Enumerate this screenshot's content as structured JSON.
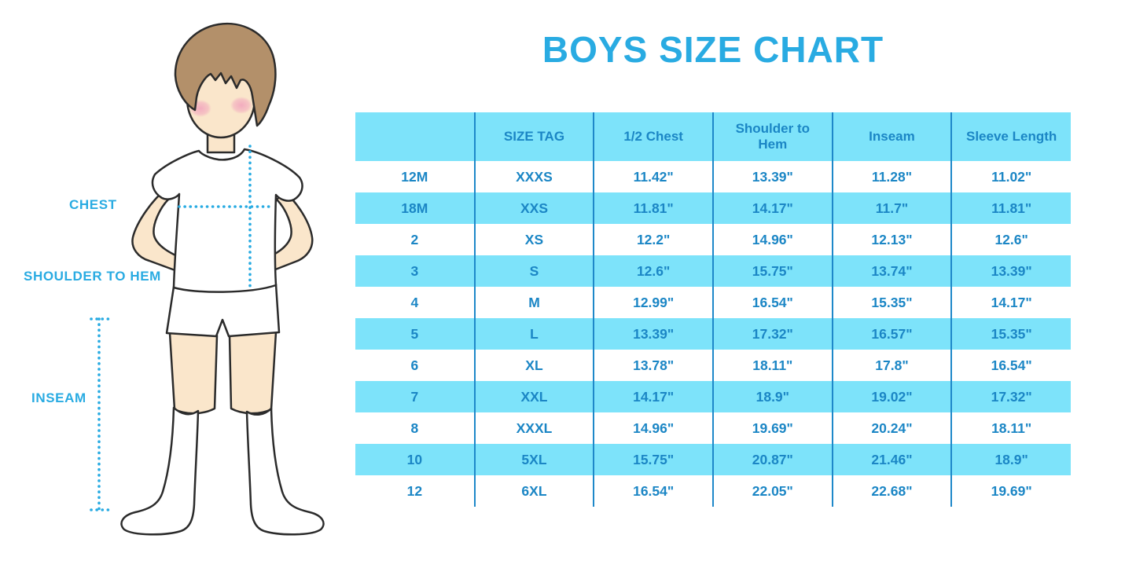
{
  "title": "BOYS SIZE CHART",
  "figure": {
    "description": "boy-in-tshirt-shorts-socks-illustration",
    "labels": {
      "chest": "CHEST",
      "shoulder_to_hem": "SHOULDER TO HEM",
      "inseam": "INSEAM"
    }
  },
  "colors": {
    "accent_blue": "#29ABE2",
    "table_text_blue": "#1B86C5",
    "row_cyan": "#7DE3FA",
    "grid_line_blue": "#1E88C9",
    "outline": "#2B2B2B",
    "skin": "#FAE6CB",
    "hair_brown": "#B3906A",
    "cheek_pink": "#F2A9BE"
  },
  "chart_data": {
    "type": "table",
    "title": "BOYS SIZE CHART",
    "columns": [
      "",
      "SIZE TAG",
      "1/2 Chest",
      "Shoulder to Hem",
      "Inseam",
      "Sleeve Length"
    ],
    "rows": [
      [
        "12M",
        "XXXS",
        "11.42\"",
        "13.39\"",
        "11.28\"",
        "11.02\""
      ],
      [
        "18M",
        "XXS",
        "11.81\"",
        "14.17\"",
        "11.7\"",
        "11.81\""
      ],
      [
        "2",
        "XS",
        "12.2\"",
        "14.96\"",
        "12.13\"",
        "12.6\""
      ],
      [
        "3",
        "S",
        "12.6\"",
        "15.75\"",
        "13.74\"",
        "13.39\""
      ],
      [
        "4",
        "M",
        "12.99\"",
        "16.54\"",
        "15.35\"",
        "14.17\""
      ],
      [
        "5",
        "L",
        "13.39\"",
        "17.32\"",
        "16.57\"",
        "15.35\""
      ],
      [
        "6",
        "XL",
        "13.78\"",
        "18.11\"",
        "17.8\"",
        "16.54\""
      ],
      [
        "7",
        "XXL",
        "14.17\"",
        "18.9\"",
        "19.02\"",
        "17.32\""
      ],
      [
        "8",
        "XXXL",
        "14.96\"",
        "19.69\"",
        "20.24\"",
        "18.11\""
      ],
      [
        "10",
        "5XL",
        "15.75\"",
        "20.87\"",
        "21.46\"",
        "18.9\""
      ],
      [
        "12",
        "6XL",
        "16.54\"",
        "22.05\"",
        "22.68\"",
        "19.69\""
      ]
    ],
    "row_striping": "header and every second data row filled light cyan, others white",
    "legend_position": "none",
    "grid": "vertical column separators only"
  }
}
